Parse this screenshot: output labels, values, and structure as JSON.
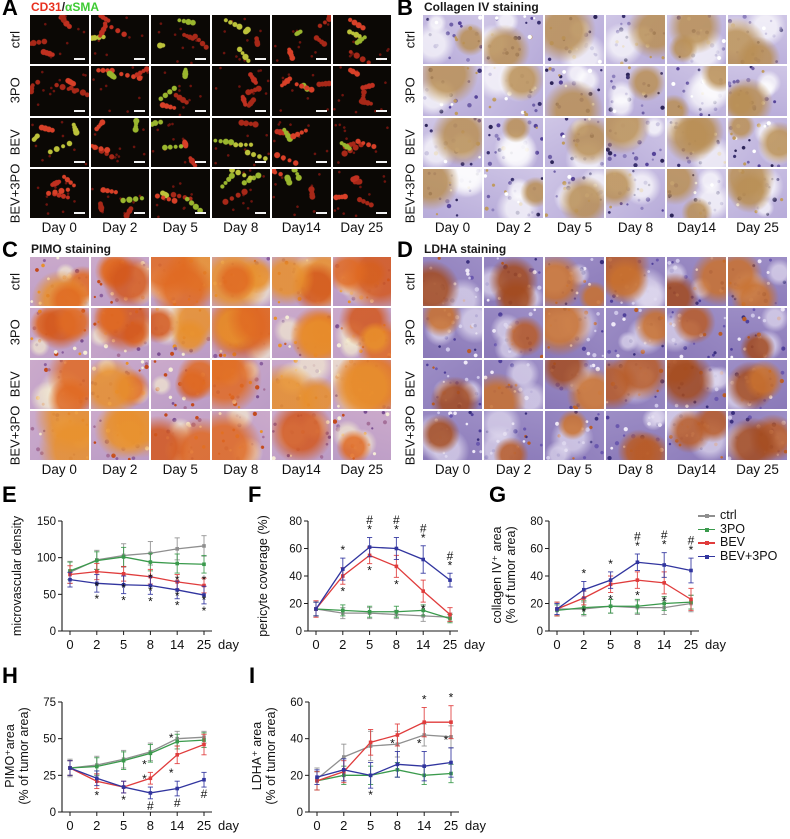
{
  "panels": [
    {
      "letter": "A",
      "header_segments": [
        {
          "text": "CD31",
          "color": "#e8301f"
        },
        {
          "text": "/",
          "color": "#222222"
        },
        {
          "text": "αSMA",
          "color": "#3ecb33"
        }
      ],
      "row_labels": [
        "ctrl",
        "3PO",
        "BEV",
        "BEV+3PO"
      ],
      "col_labels": [
        "Day 0",
        "Day 2",
        "Day 5",
        "Day 8",
        "Day14",
        "Day 25"
      ],
      "style": "fluor",
      "palette": {
        "base": "#0b0805",
        "vessel_reds": [
          "#c03020",
          "#d84028",
          "#a82818"
        ],
        "vessel_yellows": [
          "#bcc23a",
          "#9ab62e"
        ],
        "speckle": "#6d140e",
        "scalebar": "#f2f2f2"
      }
    },
    {
      "letter": "B",
      "header_segments": [
        {
          "text": "Collagen IV staining",
          "color": "#1a1a1a"
        }
      ],
      "row_labels": [
        "ctrl",
        "3PO",
        "BEV",
        "BEV+3PO"
      ],
      "col_labels": [
        "Day 0",
        "Day 2",
        "Day 5",
        "Day 8",
        "Day14",
        "Day 25"
      ],
      "style": "ihc",
      "palette": {
        "base1": "#cfc6e6",
        "base2": "#b7abd9",
        "patch1": [
          "#b98f55"
        ],
        "patch2": [
          "#ffffff"
        ],
        "speckles": [
          "#39306f",
          "#554399",
          "#ffffff",
          "#bf9a60",
          "#6f60a8",
          "#2c2458",
          "#8d80bd"
        ]
      }
    },
    {
      "letter": "C",
      "header_segments": [
        {
          "text": "PIMO staining",
          "color": "#1a1a1a"
        }
      ],
      "row_labels": [
        "ctrl",
        "3PO",
        "BEV",
        "BEV+3PO"
      ],
      "col_labels": [
        "Day 0",
        "Day 2",
        "Day 5",
        "Day 8",
        "Day14",
        "Day 25"
      ],
      "style": "ihc",
      "palette": {
        "base1": "#cbaacb",
        "base2": "#bb9cc6",
        "patch1": [
          "#e06a22",
          "#d2571d",
          "#e8902c"
        ],
        "patch2": [
          "#f3ead0"
        ],
        "speckles": [
          "#8a5f9e",
          "#a4709a",
          "#e8902c",
          "#f5edd8",
          "#7a4f92",
          "#c2491c"
        ]
      }
    },
    {
      "letter": "D",
      "header_segments": [
        {
          "text": "LDHA staining",
          "color": "#1a1a1a"
        }
      ],
      "row_labels": [
        "ctrl",
        "3PO",
        "BEV",
        "BEV+3PO"
      ],
      "col_labels": [
        "Day 0",
        "Day 2",
        "Day 5",
        "Day 8",
        "Day14",
        "Day 25"
      ],
      "style": "ihc",
      "palette": {
        "base1": "#9d8ec6",
        "base2": "#8a79b8",
        "patch1": [
          "#b85c28",
          "#c9712e",
          "#a34b1f"
        ],
        "patch2": [
          "#e2dcf0"
        ],
        "speckles": [
          "#50409a",
          "#6a58ae",
          "#cdc5e8",
          "#b85c28",
          "#3a2f7d",
          "#efe9f8"
        ]
      }
    }
  ],
  "legend": {
    "entries": [
      {
        "label": "ctrl",
        "color": "#8f8f8f"
      },
      {
        "label": "3PO",
        "color": "#3a9a4c"
      },
      {
        "label": "BEV",
        "color": "#e03c3c"
      },
      {
        "label": "BEV+3PO",
        "color": "#31359f"
      }
    ]
  },
  "chart_data": [
    {
      "type": "line",
      "letter": "E",
      "ylabel_lines": [
        "microvascular density"
      ],
      "xlabel": "day",
      "categories": [
        "0",
        "2",
        "5",
        "8",
        "14",
        "25"
      ],
      "ylim": [
        0,
        150
      ],
      "yticks": [
        0,
        50,
        100,
        150
      ],
      "series": [
        {
          "name": "ctrl",
          "color": "#8f8f8f",
          "values": [
            80,
            97,
            103,
            106,
            112,
            116
          ],
          "err": [
            15,
            13,
            16,
            16,
            15,
            14
          ]
        },
        {
          "name": "3PO",
          "color": "#3a9a4c",
          "values": [
            82,
            96,
            101,
            94,
            92,
            91
          ],
          "err": [
            12,
            12,
            13,
            12,
            13,
            12
          ]
        },
        {
          "name": "BEV",
          "color": "#e03c3c",
          "values": [
            77,
            81,
            78,
            74,
            67,
            62
          ],
          "err": [
            12,
            11,
            10,
            10,
            10,
            10
          ]
        },
        {
          "name": "BEV+3PO",
          "color": "#31359f",
          "values": [
            70,
            65,
            63,
            62,
            56,
            49
          ],
          "err": [
            10,
            12,
            12,
            12,
            12,
            12
          ]
        }
      ],
      "annotations": [
        {
          "series": "BEV",
          "xi": 1,
          "chars": [
            "*"
          ],
          "pos": "below"
        },
        {
          "series": "BEV",
          "xi": 2,
          "chars": [
            "*"
          ],
          "pos": "below"
        },
        {
          "series": "BEV",
          "xi": 3,
          "chars": [
            "*"
          ],
          "pos": "below"
        },
        {
          "series": "BEV",
          "xi": 4,
          "chars": [
            "*"
          ],
          "pos": "below"
        },
        {
          "series": "BEV",
          "xi": 5,
          "chars": [
            "*"
          ],
          "pos": "below"
        },
        {
          "series": "BEV+3PO",
          "xi": 1,
          "chars": [
            "*"
          ],
          "pos": "below"
        },
        {
          "series": "BEV+3PO",
          "xi": 2,
          "chars": [
            "*"
          ],
          "pos": "below"
        },
        {
          "series": "BEV+3PO",
          "xi": 3,
          "chars": [
            "*"
          ],
          "pos": "below"
        },
        {
          "series": "BEV+3PO",
          "xi": 4,
          "chars": [
            "*"
          ],
          "pos": "below"
        },
        {
          "series": "BEV+3PO",
          "xi": 5,
          "chars": [
            "*"
          ],
          "pos": "below"
        },
        {
          "series": "3PO",
          "xi": 3,
          "chars": [
            "*"
          ],
          "pos": "below"
        },
        {
          "series": "3PO",
          "xi": 4,
          "chars": [
            "*"
          ],
          "pos": "below"
        },
        {
          "series": "3PO",
          "xi": 5,
          "chars": [
            "*"
          ],
          "pos": "below"
        }
      ]
    },
    {
      "type": "line",
      "letter": "F",
      "ylabel_lines": [
        "pericyte coverage (%)"
      ],
      "xlabel": "day",
      "categories": [
        "0",
        "2",
        "5",
        "8",
        "14",
        "25"
      ],
      "ylim": [
        0,
        80
      ],
      "yticks": [
        0,
        20,
        40,
        60,
        80
      ],
      "series": [
        {
          "name": "ctrl",
          "color": "#8f8f8f",
          "values": [
            16,
            13,
            13,
            12,
            11,
            10
          ],
          "err": [
            5,
            4,
            4,
            3,
            4,
            3
          ]
        },
        {
          "name": "3PO",
          "color": "#3a9a4c",
          "values": [
            16,
            15,
            14,
            14,
            15,
            9
          ],
          "err": [
            5,
            4,
            4,
            4,
            4,
            3
          ]
        },
        {
          "name": "BEV",
          "color": "#e03c3c",
          "values": [
            16,
            40,
            55,
            47,
            29,
            12
          ],
          "err": [
            6,
            6,
            6,
            8,
            8,
            5
          ]
        },
        {
          "name": "BEV+3PO",
          "color": "#31359f",
          "values": [
            16,
            45,
            61,
            60,
            52,
            37
          ],
          "err": [
            5,
            8,
            7,
            8,
            10,
            5
          ]
        }
      ],
      "annotations": [
        {
          "series": "BEV+3PO",
          "xi": 1,
          "chars": [
            "*"
          ],
          "pos": "above"
        },
        {
          "series": "BEV+3PO",
          "xi": 2,
          "chars": [
            "#",
            "*"
          ],
          "pos": "above"
        },
        {
          "series": "BEV+3PO",
          "xi": 3,
          "chars": [
            "#",
            "*"
          ],
          "pos": "above"
        },
        {
          "series": "BEV+3PO",
          "xi": 4,
          "chars": [
            "#",
            "*"
          ],
          "pos": "above"
        },
        {
          "series": "BEV+3PO",
          "xi": 5,
          "chars": [
            "#",
            "*"
          ],
          "pos": "above"
        },
        {
          "series": "BEV",
          "xi": 1,
          "chars": [
            "*"
          ],
          "pos": "below"
        },
        {
          "series": "BEV",
          "xi": 2,
          "chars": [
            "*"
          ],
          "pos": "below"
        },
        {
          "series": "BEV",
          "xi": 3,
          "chars": [
            "*"
          ],
          "pos": "below"
        },
        {
          "series": "BEV",
          "xi": 4,
          "chars": [
            "*"
          ],
          "pos": "below"
        }
      ]
    },
    {
      "type": "line",
      "letter": "G",
      "ylabel_lines": [
        "collagen IV⁺ area",
        "(% of tumor area)"
      ],
      "xlabel": "day",
      "categories": [
        "0",
        "2",
        "5",
        "8",
        "14",
        "25"
      ],
      "ylim": [
        0,
        80
      ],
      "yticks": [
        0,
        20,
        40,
        60,
        80
      ],
      "series": [
        {
          "name": "ctrl",
          "color": "#8f8f8f",
          "values": [
            16,
            16,
            18,
            17,
            17,
            20
          ],
          "err": [
            5,
            5,
            5,
            5,
            5,
            6
          ]
        },
        {
          "name": "3PO",
          "color": "#3a9a4c",
          "values": [
            15,
            17,
            18,
            18,
            20,
            21
          ],
          "err": [
            4,
            5,
            5,
            5,
            5,
            5
          ]
        },
        {
          "name": "BEV",
          "color": "#e03c3c",
          "values": [
            16,
            24,
            34,
            37,
            35,
            23
          ],
          "err": [
            5,
            5,
            6,
            6,
            8,
            8
          ]
        },
        {
          "name": "BEV+3PO",
          "color": "#31359f",
          "values": [
            16,
            30,
            37,
            50,
            48,
            44
          ],
          "err": [
            4,
            6,
            6,
            6,
            9,
            9
          ]
        }
      ],
      "annotations": [
        {
          "series": "BEV+3PO",
          "xi": 1,
          "chars": [
            "*"
          ],
          "pos": "above"
        },
        {
          "series": "BEV+3PO",
          "xi": 2,
          "chars": [
            "*"
          ],
          "pos": "above"
        },
        {
          "series": "BEV+3PO",
          "xi": 3,
          "chars": [
            "#",
            "*"
          ],
          "pos": "above"
        },
        {
          "series": "BEV+3PO",
          "xi": 4,
          "chars": [
            "#",
            "*"
          ],
          "pos": "above"
        },
        {
          "series": "BEV+3PO",
          "xi": 5,
          "chars": [
            "#",
            "*"
          ],
          "pos": "above"
        },
        {
          "series": "BEV",
          "xi": 1,
          "chars": [
            "*"
          ],
          "pos": "below"
        },
        {
          "series": "BEV",
          "xi": 2,
          "chars": [
            "*"
          ],
          "pos": "below"
        },
        {
          "series": "BEV",
          "xi": 3,
          "chars": [
            "*"
          ],
          "pos": "below"
        },
        {
          "series": "BEV",
          "xi": 4,
          "chars": [
            "*"
          ],
          "pos": "below"
        }
      ]
    },
    {
      "type": "line",
      "letter": "H",
      "ylabel_lines": [
        "PIMO⁺area",
        "(% of tumor area)"
      ],
      "xlabel": "day",
      "categories": [
        "0",
        "2",
        "5",
        "8",
        "14",
        "25"
      ],
      "ylim": [
        0,
        75
      ],
      "yticks": [
        0,
        25,
        50,
        75
      ],
      "series": [
        {
          "name": "ctrl",
          "color": "#8f8f8f",
          "values": [
            30,
            32,
            36,
            41,
            50,
            51
          ],
          "err": [
            6,
            6,
            6,
            6,
            5,
            4
          ]
        },
        {
          "name": "3PO",
          "color": "#3a9a4c",
          "values": [
            30,
            31,
            35,
            40,
            48,
            49
          ],
          "err": [
            5,
            6,
            6,
            6,
            5,
            5
          ]
        },
        {
          "name": "BEV",
          "color": "#e03c3c",
          "values": [
            30,
            21,
            17,
            23,
            39,
            46
          ],
          "err": [
            5,
            5,
            4,
            4,
            6,
            7
          ]
        },
        {
          "name": "BEV+3PO",
          "color": "#31359f",
          "values": [
            30,
            23,
            17,
            13,
            16,
            22
          ],
          "err": [
            5,
            5,
            4,
            4,
            5,
            5
          ]
        }
      ],
      "annotations": [
        {
          "series": "BEV",
          "xi": 1,
          "chars": [
            "*"
          ],
          "pos": "below"
        },
        {
          "series": "BEV",
          "xi": 2,
          "chars": [
            "*"
          ],
          "pos": "below"
        },
        {
          "series": "BEV",
          "xi": 3,
          "chars": [
            "*"
          ],
          "pos": "above",
          "dx": -6
        },
        {
          "series": "BEV",
          "xi": 4,
          "chars": [
            "*"
          ],
          "pos": "above",
          "dx": -6
        },
        {
          "series": "BEV+3PO",
          "xi": 3,
          "chars": [
            "*"
          ],
          "pos": "above",
          "dx": -6
        },
        {
          "series": "BEV+3PO",
          "xi": 4,
          "chars": [
            "*"
          ],
          "pos": "above",
          "dx": -6
        },
        {
          "series": "BEV+3PO",
          "xi": 3,
          "chars": [
            "#"
          ],
          "pos": "below"
        },
        {
          "series": "BEV+3PO",
          "xi": 4,
          "chars": [
            "#"
          ],
          "pos": "below"
        },
        {
          "series": "BEV+3PO",
          "xi": 5,
          "chars": [
            "#"
          ],
          "pos": "below"
        }
      ]
    },
    {
      "type": "line",
      "letter": "I",
      "ylabel_lines": [
        "LDHA⁺ area",
        "(% of tumor area)"
      ],
      "xlabel": "day",
      "categories": [
        "0",
        "2",
        "5",
        "8",
        "14",
        "25"
      ],
      "ylim": [
        0,
        60
      ],
      "yticks": [
        0,
        20,
        40,
        60
      ],
      "series": [
        {
          "name": "ctrl",
          "color": "#8f8f8f",
          "values": [
            18,
            30,
            36,
            37,
            42,
            41
          ],
          "err": [
            6,
            7,
            8,
            7,
            6,
            6
          ]
        },
        {
          "name": "3PO",
          "color": "#3a9a4c",
          "values": [
            17,
            20,
            20,
            23,
            20,
            21
          ],
          "err": [
            5,
            5,
            5,
            4,
            5,
            5
          ]
        },
        {
          "name": "BEV",
          "color": "#e03c3c",
          "values": [
            17,
            22,
            38,
            42,
            49,
            49
          ],
          "err": [
            5,
            6,
            7,
            6,
            8,
            9
          ]
        },
        {
          "name": "BEV+3PO",
          "color": "#31359f",
          "values": [
            19,
            23,
            20,
            26,
            25,
            27
          ],
          "err": [
            4,
            6,
            7,
            7,
            8,
            8
          ]
        }
      ],
      "annotations": [
        {
          "series": "BEV",
          "xi": 4,
          "chars": [
            "*"
          ],
          "pos": "above"
        },
        {
          "series": "BEV",
          "xi": 5,
          "chars": [
            "*"
          ],
          "pos": "above"
        },
        {
          "series": "BEV+3PO",
          "xi": 3,
          "chars": [
            "*"
          ],
          "pos": "above",
          "dx": -5
        },
        {
          "series": "BEV+3PO",
          "xi": 4,
          "chars": [
            "*"
          ],
          "pos": "above",
          "dx": -5
        },
        {
          "series": "BEV+3PO",
          "xi": 5,
          "chars": [
            "*"
          ],
          "pos": "above",
          "dx": -5
        },
        {
          "series": "BEV+3PO",
          "xi": 2,
          "chars": [
            "*"
          ],
          "pos": "below"
        }
      ]
    }
  ]
}
